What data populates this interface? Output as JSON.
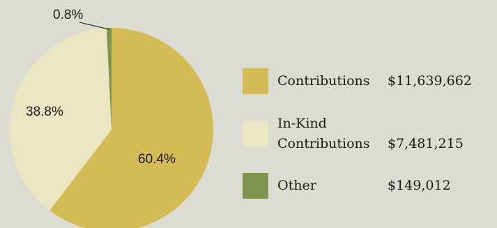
{
  "chart_data": {
    "type": "pie",
    "slices": [
      {
        "label": "Contributions",
        "value": 11639662,
        "value_text": "$11,639,662",
        "percent_text": "60.4%",
        "color": "#d4bb55"
      },
      {
        "label": "In-Kind Contributions",
        "label_lines": [
          "In-Kind",
          "Contributions"
        ],
        "value": 7481215,
        "value_text": "$7,481,215",
        "percent_text": "38.8%",
        "color": "#ebe6c2"
      },
      {
        "label": "Other",
        "value": 149012,
        "value_text": "$149,012",
        "percent_text": "0.8%",
        "color": "#7f944e"
      }
    ],
    "legend_position": "right",
    "background": "#dcdcd2"
  }
}
